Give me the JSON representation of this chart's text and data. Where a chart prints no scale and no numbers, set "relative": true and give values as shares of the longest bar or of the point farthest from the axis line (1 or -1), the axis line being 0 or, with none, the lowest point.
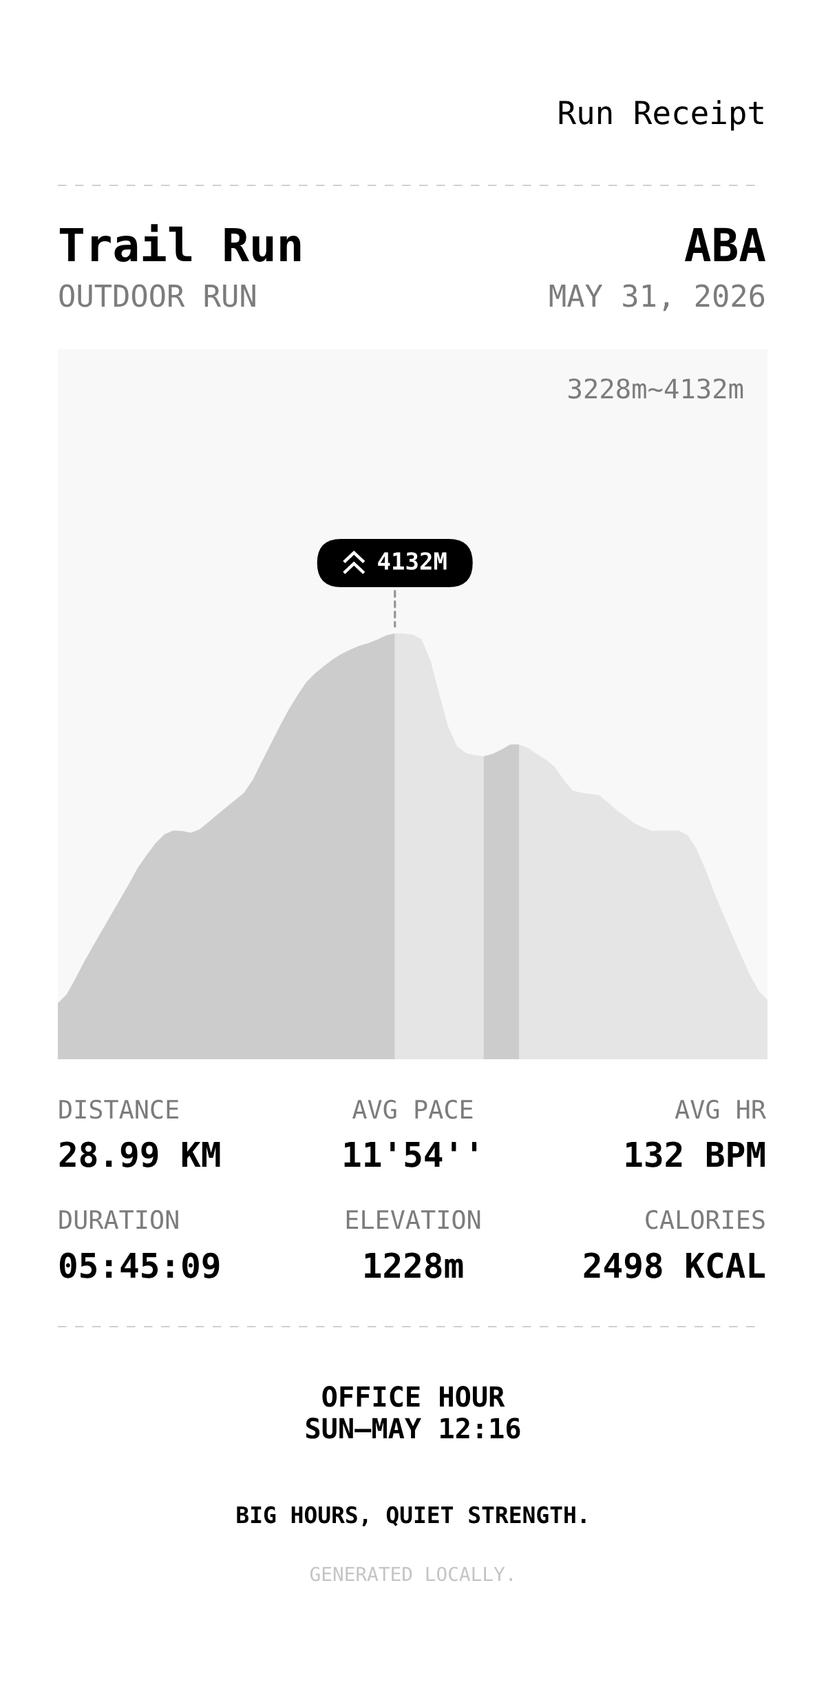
{
  "chart_data": {
    "type": "area",
    "title": "Trail Run",
    "subtitle": "OUTDOOR RUN",
    "relative": true,
    "categories": [
      null,
      null,
      null,
      null,
      null,
      null,
      null,
      null,
      null,
      null,
      null,
      null,
      null,
      null,
      null,
      null,
      null,
      null,
      null,
      null,
      null,
      null,
      null,
      null,
      null,
      null,
      null,
      null,
      null,
      null,
      null,
      null,
      null,
      null,
      null,
      null,
      null,
      null,
      null,
      null,
      null,
      null,
      null,
      null,
      null,
      null,
      null,
      null,
      null,
      null,
      null,
      null,
      null,
      null,
      null,
      null,
      null,
      null,
      null,
      null,
      null,
      null,
      null,
      null,
      null,
      null,
      null,
      null,
      null,
      null,
      null,
      null,
      null,
      null,
      null,
      null,
      null,
      null,
      null,
      null,
      null
    ],
    "series": [
      {
        "color": "#cccccc",
        "values": [
          0.132,
          0.152,
          0.19,
          0.23,
          0.267,
          0.303,
          0.339,
          0.375,
          0.411,
          0.449,
          0.479,
          0.507,
          0.528,
          0.537,
          0.536,
          0.532,
          0.54,
          0.557,
          0.575,
          0.592,
          0.609,
          0.626,
          0.657,
          0.699,
          0.74,
          0.781,
          0.82,
          0.854,
          0.885,
          0.906,
          0.923,
          0.939,
          0.952,
          0.962,
          0.971,
          0.977,
          0.985,
          0.995,
          1,
          null,
          null,
          null,
          null,
          null,
          null,
          null,
          null,
          null,
          null,
          null,
          null,
          null,
          null,
          null,
          null,
          null,
          null,
          null,
          null,
          null,
          null,
          null,
          null,
          null,
          null,
          null,
          null,
          null,
          null,
          null,
          null,
          null,
          null,
          null,
          null,
          null,
          null,
          null,
          null,
          null,
          null
        ]
      },
      {
        "color": "#e5e5e5",
        "values": [
          null,
          null,
          null,
          null,
          null,
          null,
          null,
          null,
          null,
          null,
          null,
          null,
          null,
          null,
          null,
          null,
          null,
          null,
          null,
          null,
          null,
          null,
          null,
          null,
          null,
          null,
          null,
          null,
          null,
          null,
          null,
          null,
          null,
          null,
          null,
          null,
          null,
          null,
          1,
          0.999,
          0.997,
          0.986,
          0.937,
          0.857,
          0.781,
          0.735,
          0.719,
          0.714,
          0.711,
          null,
          null,
          null,
          0.739,
          0.731,
          0.717,
          0.704,
          0.687,
          0.657,
          0.631,
          0.626,
          0.623,
          0.62,
          0.603,
          0.585,
          0.57,
          0.554,
          0.544,
          0.536,
          0.537,
          0.537,
          0.537,
          0.526,
          0.494,
          0.446,
          0.391,
          0.341,
          0.293,
          0.245,
          0.199,
          0.161,
          0.139
        ]
      },
      {
        "color": "#cccccc",
        "values": [
          null,
          null,
          null,
          null,
          null,
          null,
          null,
          null,
          null,
          null,
          null,
          null,
          null,
          null,
          null,
          null,
          null,
          null,
          null,
          null,
          null,
          null,
          null,
          null,
          null,
          null,
          null,
          null,
          null,
          null,
          null,
          null,
          null,
          null,
          null,
          null,
          null,
          null,
          null,
          null,
          null,
          null,
          null,
          null,
          null,
          null,
          null,
          null,
          0.711,
          0.717,
          0.727,
          0.739,
          0.739,
          null,
          null,
          null,
          null,
          null,
          null,
          null,
          null,
          null,
          null,
          null,
          null,
          null,
          null,
          null,
          null,
          null,
          null,
          null,
          null,
          null,
          null,
          null,
          null,
          null,
          null,
          null,
          null
        ]
      }
    ],
    "annotations": [
      "Run Receipt",
      "ABA",
      "MAY 31, 2026",
      "3228m~4132m",
      "4132M",
      "DISTANCE",
      "28.99 KM",
      "AVG PACE",
      "11'54''",
      "AVG HR",
      "132 BPM",
      "DURATION",
      "05:45:09",
      "ELEVATION",
      "1228m",
      "CALORIES",
      "2498 KCAL",
      "OFFICE HOUR",
      "SUN—MAY 12:16",
      "BIG HOURS, QUIET STRENGTH.",
      "GENERATED LOCALLY."
    ]
  }
}
